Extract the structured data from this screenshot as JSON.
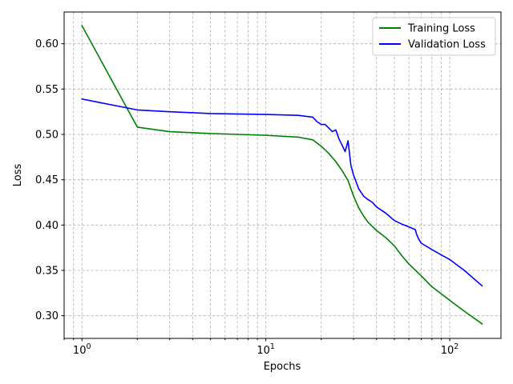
{
  "chart_data": {
    "type": "line",
    "title": "",
    "xlabel": "Epochs",
    "ylabel": "Loss",
    "x_scale": "log",
    "xlim": [
      0.8,
      190
    ],
    "ylim": [
      0.275,
      0.635
    ],
    "grid": {
      "major": true,
      "minor_x": true
    },
    "x_major_ticks": [
      1,
      10,
      100
    ],
    "x_tick_labels": [
      {
        "base": "10",
        "exp": "0"
      },
      {
        "base": "10",
        "exp": "1"
      },
      {
        "base": "10",
        "exp": "2"
      }
    ],
    "y_ticks": [
      0.3,
      0.35,
      0.4,
      0.45,
      0.5,
      0.55,
      0.6
    ],
    "y_tick_labels": [
      "0.30",
      "0.35",
      "0.40",
      "0.45",
      "0.50",
      "0.55",
      "0.60"
    ],
    "legend": {
      "position": "top-right"
    },
    "series": [
      {
        "name": "Training Loss",
        "color": "#008000",
        "x": [
          1,
          2,
          3,
          5,
          10,
          15,
          18,
          20,
          22,
          24,
          26,
          28,
          30,
          32,
          34,
          36,
          40,
          45,
          50,
          55,
          60,
          70,
          80,
          100,
          120,
          150
        ],
        "y": [
          0.62,
          0.508,
          0.503,
          0.501,
          0.499,
          0.497,
          0.494,
          0.487,
          0.479,
          0.47,
          0.46,
          0.449,
          0.432,
          0.419,
          0.41,
          0.403,
          0.394,
          0.386,
          0.377,
          0.366,
          0.357,
          0.344,
          0.332,
          0.317,
          0.305,
          0.291
        ]
      },
      {
        "name": "Validation Loss",
        "color": "#0000ff",
        "x": [
          1,
          2,
          3,
          5,
          10,
          15,
          18,
          19,
          20,
          21,
          22,
          23,
          24,
          25,
          26,
          27,
          28,
          29,
          30,
          32,
          34,
          36,
          38,
          40,
          45,
          50,
          55,
          60,
          65,
          66,
          68,
          70,
          80,
          90,
          100,
          120,
          150
        ],
        "y": [
          0.539,
          0.527,
          0.525,
          0.523,
          0.522,
          0.521,
          0.519,
          0.514,
          0.511,
          0.511,
          0.507,
          0.503,
          0.505,
          0.495,
          0.488,
          0.481,
          0.493,
          0.466,
          0.455,
          0.44,
          0.432,
          0.428,
          0.425,
          0.42,
          0.413,
          0.405,
          0.401,
          0.398,
          0.395,
          0.39,
          0.384,
          0.38,
          0.373,
          0.367,
          0.362,
          0.35,
          0.333
        ]
      }
    ]
  }
}
